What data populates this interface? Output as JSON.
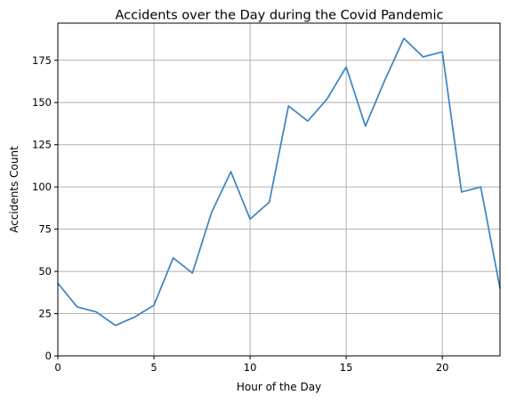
{
  "chart_data": {
    "type": "line",
    "title": "Accidents over the Day during the Covid Pandemic",
    "xlabel": "Hour of the Day",
    "ylabel": "Accidents Count",
    "xlim": [
      0,
      23
    ],
    "ylim": [
      0,
      197
    ],
    "x_ticks": [
      0,
      5,
      10,
      15,
      20
    ],
    "y_ticks": [
      0,
      25,
      50,
      75,
      100,
      125,
      150,
      175
    ],
    "grid": true,
    "legend": "none",
    "series_color": "#3a84c4",
    "x": [
      0,
      1,
      2,
      3,
      4,
      5,
      6,
      7,
      8,
      9,
      10,
      11,
      12,
      13,
      14,
      15,
      16,
      17,
      18,
      19,
      20,
      21,
      22,
      23
    ],
    "values": [
      43,
      29,
      26,
      18,
      23,
      30,
      58,
      49,
      85,
      109,
      81,
      91,
      148,
      139,
      152,
      171,
      136,
      163,
      188,
      177,
      180,
      97,
      100,
      40
    ]
  }
}
